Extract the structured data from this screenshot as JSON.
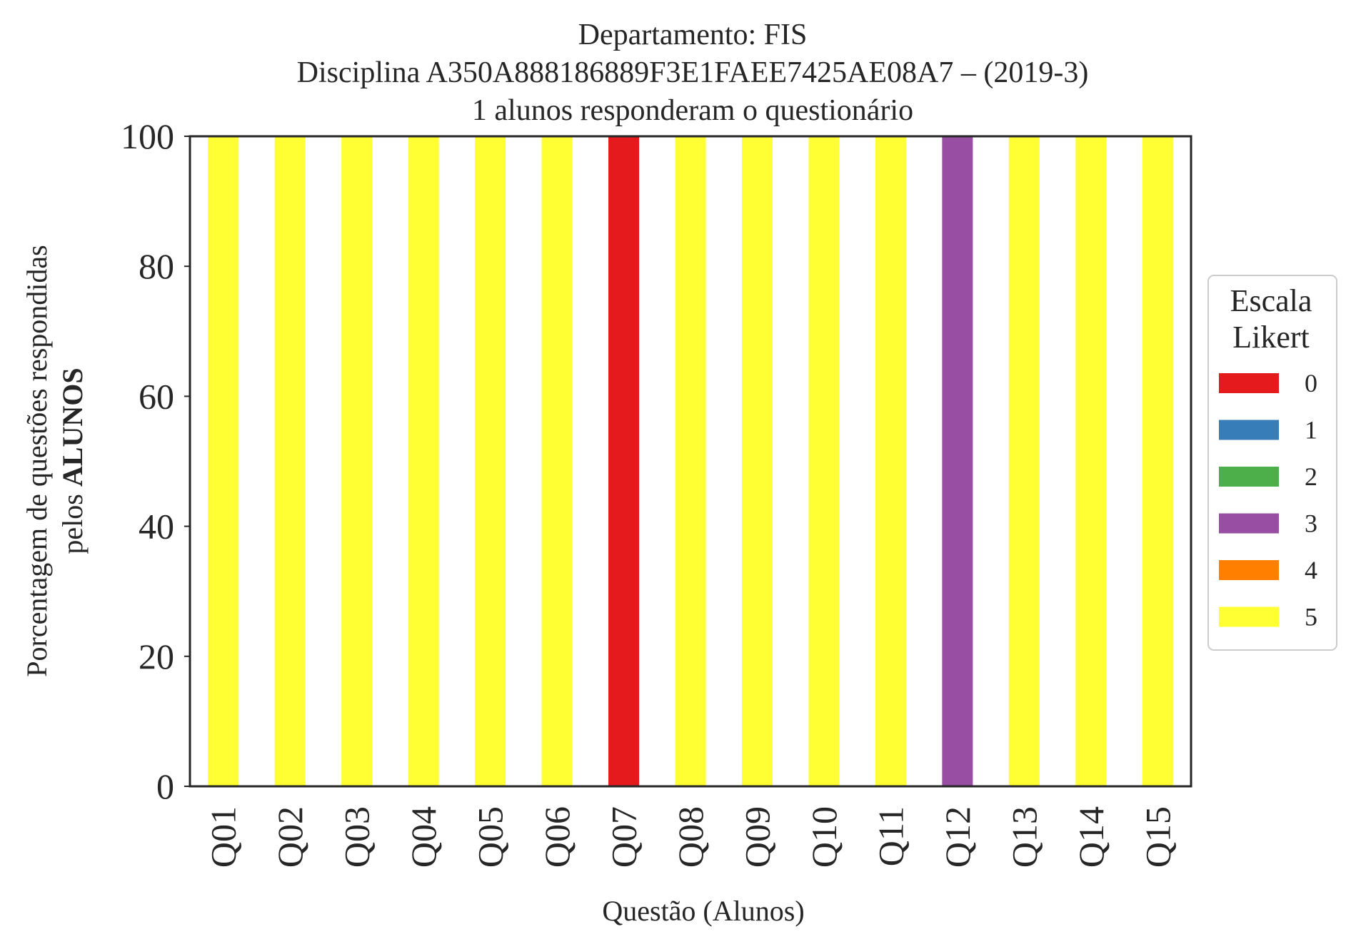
{
  "chart_data": {
    "type": "bar",
    "stacked": true,
    "title": [
      "Departamento: FIS",
      "Disciplina A350A888186889F3E1FAEE7425AE08A7 – (2019-3)",
      "1 alunos responderam o questionário"
    ],
    "xlabel": "Questão (Alunos)",
    "ylabel": {
      "line1": "Porcentagem de questões respondidas",
      "line2_prefix": "pelos ",
      "line2_bold": "ALUNOS"
    },
    "ylim": [
      0,
      100
    ],
    "yticks": [
      "0",
      "20",
      "40",
      "60",
      "80",
      "100"
    ],
    "categories": [
      "Q01",
      "Q02",
      "Q03",
      "Q04",
      "Q05",
      "Q06",
      "Q07",
      "Q08",
      "Q09",
      "Q10",
      "Q11",
      "Q12",
      "Q13",
      "Q14",
      "Q15"
    ],
    "series": [
      {
        "name": "0",
        "color": "#e41a1c",
        "values": [
          0,
          0,
          0,
          0,
          0,
          0,
          100,
          0,
          0,
          0,
          0,
          0,
          0,
          0,
          0
        ]
      },
      {
        "name": "1",
        "color": "#377eb8",
        "values": [
          0,
          0,
          0,
          0,
          0,
          0,
          0,
          0,
          0,
          0,
          0,
          0,
          0,
          0,
          0
        ]
      },
      {
        "name": "2",
        "color": "#4daf4a",
        "values": [
          0,
          0,
          0,
          0,
          0,
          0,
          0,
          0,
          0,
          0,
          0,
          0,
          0,
          0,
          0
        ]
      },
      {
        "name": "3",
        "color": "#984ea3",
        "values": [
          0,
          0,
          0,
          0,
          0,
          0,
          0,
          0,
          0,
          0,
          0,
          100,
          0,
          0,
          0
        ]
      },
      {
        "name": "4",
        "color": "#ff7f00",
        "values": [
          0,
          0,
          0,
          0,
          0,
          0,
          0,
          0,
          0,
          0,
          0,
          0,
          0,
          0,
          0
        ]
      },
      {
        "name": "5",
        "color": "#ffff33",
        "values": [
          100,
          100,
          100,
          100,
          100,
          100,
          0,
          100,
          100,
          100,
          100,
          0,
          100,
          100,
          100
        ]
      }
    ],
    "legend": {
      "title": [
        "Escala",
        "Likert"
      ],
      "placement": "right"
    },
    "grid": false
  }
}
